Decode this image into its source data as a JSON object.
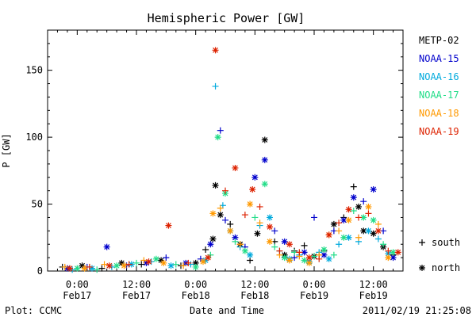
{
  "chart_data": {
    "type": "scatter",
    "title": "Hemispheric Power [GW]",
    "xlabel": "Date and Time",
    "ylabel": "P [GW]",
    "ylim": [
      0,
      180
    ],
    "xlim_hours": [
      -6,
      66
    ],
    "y_ticks": [
      0,
      50,
      100,
      150
    ],
    "x_ticks": [
      {
        "hour": 0,
        "line1": "0:00",
        "line2": "Feb17"
      },
      {
        "hour": 12,
        "line1": "12:00",
        "line2": "Feb17"
      },
      {
        "hour": 24,
        "line1": "0:00",
        "line2": "Feb18"
      },
      {
        "hour": 36,
        "line1": "12:00",
        "line2": "Feb18"
      },
      {
        "hour": 48,
        "line1": "0:00",
        "line2": "Feb19"
      },
      {
        "hour": 60,
        "line1": "12:00",
        "line2": "Feb19"
      }
    ],
    "x_tick_unit": "hours since Feb17 0:00",
    "legend_position": "right",
    "series": [
      {
        "name": "METP-02",
        "color": "#000000",
        "x": [
          -3,
          1,
          5,
          9,
          13,
          17,
          21,
          24,
          26,
          27.5,
          28,
          29,
          31,
          33,
          35,
          36.5,
          38,
          40,
          42,
          44,
          46,
          48,
          50,
          52,
          54,
          56,
          57,
          58,
          60,
          62,
          64
        ],
        "y": [
          3,
          4,
          2,
          6,
          5,
          8,
          4,
          6,
          16,
          24,
          64,
          42,
          35,
          20,
          8,
          28,
          98,
          22,
          12,
          15,
          19,
          11,
          15,
          35,
          40,
          63,
          48,
          30,
          28,
          18,
          12
        ],
        "hemi": [
          0,
          1,
          0,
          1,
          0,
          1,
          0,
          1,
          0,
          1,
          1,
          1,
          0,
          1,
          0,
          1,
          1,
          0,
          1,
          0,
          0,
          1,
          0,
          1,
          0,
          0,
          1,
          1,
          1,
          1,
          0
        ]
      },
      {
        "name": "NOAA-15",
        "color": "#0000cc",
        "x": [
          -2,
          2,
          6,
          10,
          14,
          18,
          22,
          25,
          27,
          29,
          30,
          32,
          34,
          36,
          38,
          40,
          42,
          44,
          46,
          48,
          50,
          52,
          54,
          56,
          58,
          60,
          62,
          64
        ],
        "y": [
          2,
          3,
          18,
          4,
          6,
          10,
          6,
          9,
          20,
          105,
          38,
          25,
          18,
          70,
          83,
          30,
          22,
          10,
          14,
          40,
          12,
          30,
          38,
          55,
          52,
          61,
          30,
          10
        ],
        "hemi": [
          1,
          0,
          1,
          0,
          1,
          0,
          1,
          0,
          1,
          0,
          0,
          1,
          0,
          1,
          1,
          0,
          1,
          0,
          1,
          0,
          1,
          0,
          1,
          1,
          0,
          1,
          0,
          1
        ]
      },
      {
        "name": "NOAA-16",
        "color": "#00aadd",
        "x": [
          -1,
          3,
          7,
          11,
          15,
          19,
          23,
          26,
          28,
          29.5,
          31,
          33,
          35,
          37,
          39,
          41,
          43,
          45,
          47,
          49,
          51,
          53,
          55,
          57,
          59,
          61,
          63
        ],
        "y": [
          1,
          2,
          3,
          5,
          7,
          4,
          5,
          8,
          138,
          49,
          30,
          18,
          12,
          34,
          40,
          15,
          9,
          12,
          7,
          14,
          9,
          20,
          25,
          22,
          30,
          24,
          13
        ],
        "hemi": [
          0,
          1,
          0,
          1,
          0,
          1,
          0,
          1,
          0,
          0,
          1,
          0,
          1,
          0,
          1,
          0,
          1,
          0,
          1,
          0,
          1,
          0,
          1,
          0,
          1,
          0,
          1
        ]
      },
      {
        "name": "NOAA-17",
        "color": "#22dd88",
        "x": [
          0,
          4,
          8,
          12,
          16,
          20,
          24,
          27,
          28.5,
          30,
          32,
          34,
          36,
          38,
          40,
          42,
          44,
          46,
          48,
          50,
          52,
          54,
          56,
          58,
          60,
          62,
          64
        ],
        "y": [
          2,
          1,
          4,
          6,
          9,
          5,
          3,
          12,
          100,
          58,
          22,
          15,
          40,
          65,
          18,
          10,
          14,
          8,
          11,
          16,
          12,
          25,
          45,
          40,
          38,
          20,
          14
        ],
        "hemi": [
          1,
          0,
          1,
          0,
          1,
          0,
          1,
          0,
          1,
          1,
          0,
          1,
          0,
          1,
          0,
          1,
          0,
          1,
          0,
          1,
          0,
          1,
          0,
          1,
          1,
          0,
          1
        ]
      },
      {
        "name": "NOAA-18",
        "color": "#ff9900",
        "x": [
          -2.5,
          1.5,
          5.5,
          9.5,
          13.5,
          17.5,
          21.5,
          25.5,
          27.5,
          29,
          31,
          33,
          35,
          37,
          39,
          41,
          43,
          45,
          47,
          49,
          51,
          53,
          55,
          57,
          59,
          61,
          63
        ],
        "y": [
          3,
          2,
          5,
          4,
          8,
          6,
          4,
          7,
          43,
          47,
          30,
          20,
          50,
          36,
          22,
          12,
          8,
          11,
          6,
          12,
          27,
          30,
          38,
          25,
          48,
          35,
          10
        ],
        "hemi": [
          0,
          1,
          0,
          1,
          0,
          1,
          0,
          1,
          1,
          0,
          1,
          0,
          1,
          0,
          1,
          0,
          1,
          0,
          1,
          0,
          1,
          0,
          1,
          0,
          1,
          0,
          1
        ]
      },
      {
        "name": "NOAA-19",
        "color": "#dd2200",
        "x": [
          -1.5,
          2.5,
          6.5,
          10.5,
          14.5,
          18.5,
          22.5,
          26.5,
          28,
          30,
          32,
          34,
          35.5,
          37,
          39,
          41,
          43,
          45,
          47,
          49,
          51,
          53,
          55,
          57,
          59,
          61,
          63,
          65
        ],
        "y": [
          2,
          3,
          4,
          5,
          7,
          34,
          6,
          10,
          165,
          60,
          77,
          42,
          61,
          48,
          33,
          15,
          20,
          14,
          10,
          9,
          27,
          36,
          46,
          40,
          43,
          30,
          15,
          14
        ],
        "hemi": [
          1,
          0,
          1,
          0,
          1,
          1,
          0,
          1,
          1,
          0,
          1,
          0,
          1,
          0,
          1,
          0,
          1,
          0,
          1,
          0,
          1,
          0,
          1,
          0,
          0,
          1,
          0,
          1
        ]
      }
    ]
  },
  "legend": {
    "south_label": "south",
    "north_label": "north"
  },
  "footer": {
    "left": "Plot: CCMC",
    "right": "2011/02/19 21:25:08"
  }
}
